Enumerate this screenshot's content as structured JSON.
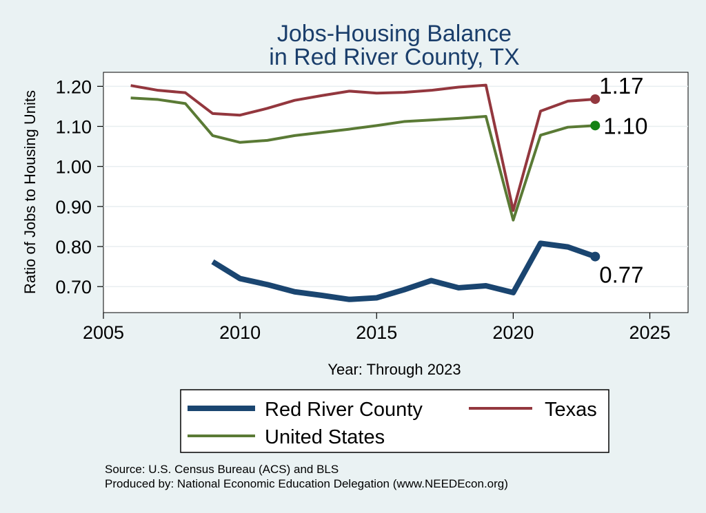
{
  "chart_data": {
    "type": "line",
    "title": [
      "Jobs-Housing Balance",
      "in Red River County, TX"
    ],
    "xlabel": "Year: Through 2023",
    "ylabel": "Ratio of Jobs to Housing Units",
    "xlim": [
      2005,
      2026.4
    ],
    "ylim": [
      0.635,
      1.235
    ],
    "x_ticks": [
      2005,
      2010,
      2015,
      2020,
      2025
    ],
    "y_ticks": [
      0.7,
      0.8,
      0.9,
      1.0,
      1.1,
      1.2
    ],
    "y_tick_labels": [
      "0.70",
      "0.80",
      "0.90",
      "1.00",
      "1.10",
      "1.20"
    ],
    "grid": true,
    "series": [
      {
        "name": "Red River County",
        "color": "#1a4570",
        "end_color": "#1a4570",
        "end_label": "0.77",
        "x": [
          2009,
          2010,
          2011,
          2012,
          2013,
          2014,
          2015,
          2016,
          2017,
          2018,
          2019,
          2020,
          2021,
          2022,
          2023
        ],
        "values": [
          0.762,
          0.72,
          0.705,
          0.687,
          0.678,
          0.668,
          0.672,
          0.692,
          0.715,
          0.697,
          0.702,
          0.685,
          0.808,
          0.799,
          0.775
        ]
      },
      {
        "name": "Texas",
        "color": "#93373e",
        "end_color": "#93373e",
        "end_label": "1.17",
        "x": [
          2006,
          2007,
          2008,
          2009,
          2010,
          2011,
          2012,
          2013,
          2014,
          2015,
          2016,
          2017,
          2018,
          2019,
          2020,
          2021,
          2022,
          2023
        ],
        "values": [
          1.202,
          1.19,
          1.184,
          1.132,
          1.128,
          1.145,
          1.165,
          1.177,
          1.188,
          1.183,
          1.185,
          1.19,
          1.198,
          1.203,
          0.89,
          1.138,
          1.163,
          1.168
        ]
      },
      {
        "name": "United States",
        "color": "#5a7a35",
        "end_color": "#148214",
        "end_label": "1.10",
        "x": [
          2006,
          2007,
          2008,
          2009,
          2010,
          2011,
          2012,
          2013,
          2014,
          2015,
          2016,
          2017,
          2018,
          2019,
          2020,
          2021,
          2022,
          2023
        ],
        "values": [
          1.171,
          1.167,
          1.157,
          1.077,
          1.06,
          1.065,
          1.077,
          1.085,
          1.093,
          1.102,
          1.112,
          1.116,
          1.12,
          1.125,
          0.866,
          1.078,
          1.098,
          1.102
        ]
      }
    ]
  },
  "legend": {
    "items": [
      "Red River County",
      "Texas",
      "United States"
    ]
  },
  "notes": {
    "source": "Source: U.S. Census Bureau (ACS) and BLS",
    "produced": "Produced by: National Economic Education Delegation (www.NEEDEcon.org)"
  }
}
